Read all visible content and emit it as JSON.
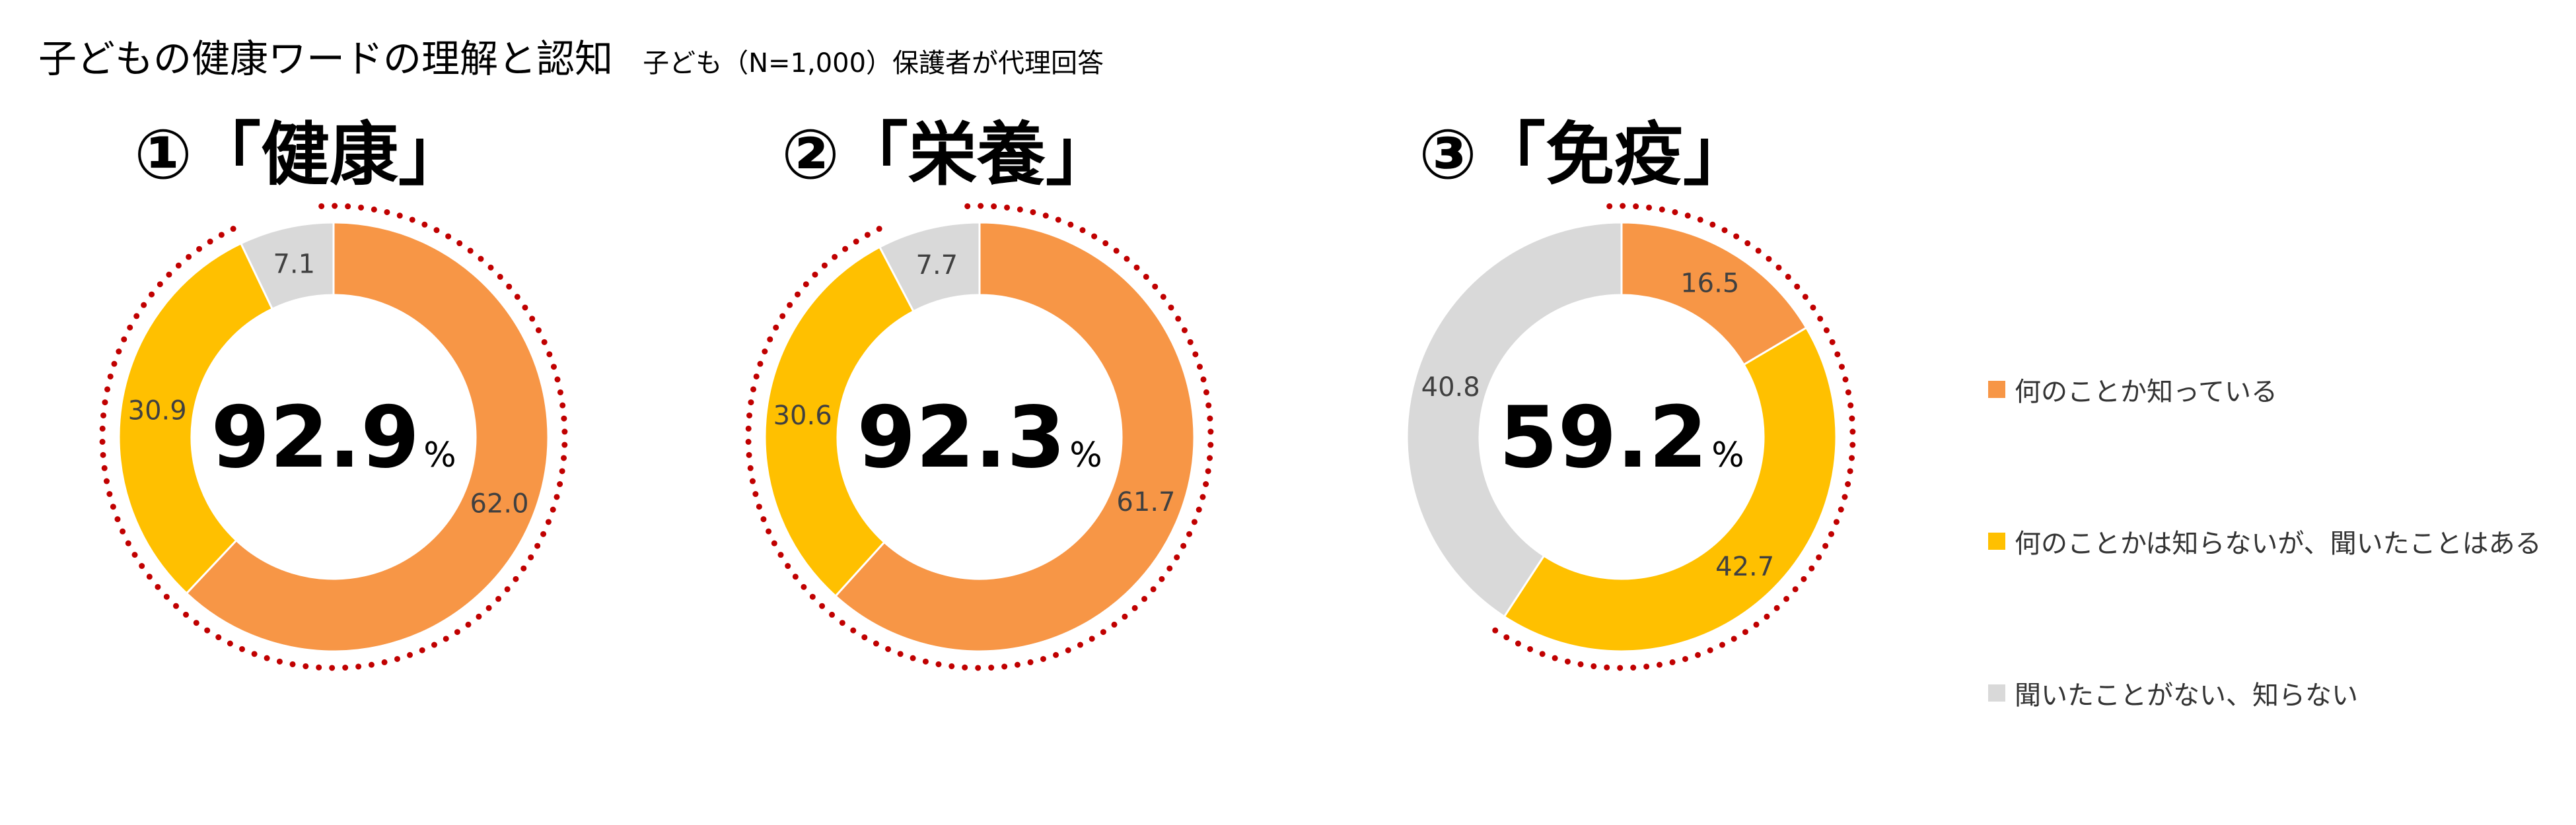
{
  "header": {
    "title": "子どもの健康ワードの理解と認知",
    "subtitle": "子ども（N=1,000）保護者が代理回答"
  },
  "colors": {
    "know": "#F79646",
    "heard": "#FFC000",
    "unknown": "#D9D9D9",
    "dotted_ring": "#C00000"
  },
  "chart_data": [
    {
      "type": "pie",
      "title": "①「健康」",
      "center_value": "92.9",
      "center_unit": "%",
      "series": [
        {
          "name": "何のことか知っている",
          "value": 62.0,
          "label": "62.0"
        },
        {
          "name": "何のことかは知らないが、聞いたことはある",
          "value": 30.9,
          "label": "30.9"
        },
        {
          "name": "聞いたことがない、知らない",
          "value": 7.1,
          "label": "7.1"
        }
      ]
    },
    {
      "type": "pie",
      "title": "②「栄養」",
      "center_value": "92.3",
      "center_unit": "%",
      "series": [
        {
          "name": "何のことか知っている",
          "value": 61.7,
          "label": "61.7"
        },
        {
          "name": "何のことかは知らないが、聞いたことはある",
          "value": 30.6,
          "label": "30.6"
        },
        {
          "name": "聞いたことがない、知らない",
          "value": 7.7,
          "label": "7.7"
        }
      ]
    },
    {
      "type": "pie",
      "title": "③「免疫」",
      "center_value": "59.2",
      "center_unit": "%",
      "series": [
        {
          "name": "何のことか知っている",
          "value": 16.5,
          "label": "16.5"
        },
        {
          "name": "何のことかは知らないが、聞いたことはある",
          "value": 42.7,
          "label": "42.7"
        },
        {
          "name": "聞いたことがない、知らない",
          "value": 40.8,
          "label": "40.8"
        }
      ]
    }
  ],
  "legend": {
    "items": [
      {
        "label": "何のことか知っている",
        "color": "#F79646"
      },
      {
        "label": "何のことかは知らないが、聞いたことはある",
        "color": "#FFC000"
      },
      {
        "label": "聞いたことがない、知らない",
        "color": "#D9D9D9"
      }
    ]
  }
}
